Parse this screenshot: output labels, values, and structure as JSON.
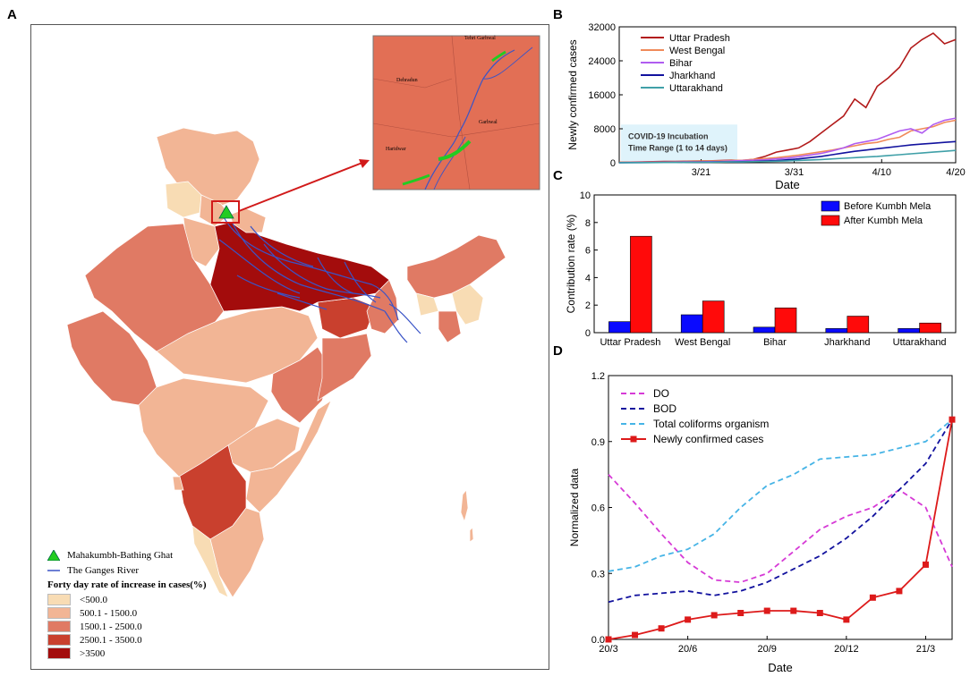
{
  "panels": {
    "a": "A",
    "b": "B",
    "c": "C",
    "d": "D"
  },
  "colors": {
    "class1": "#f8dcb4",
    "class2": "#f2b595",
    "class3": "#e07a64",
    "class4": "#c9402e",
    "class5": "#a30c0c",
    "river": "#3a54c7",
    "ghat": "#22cc22",
    "inset_bg": "#e26f55",
    "arrow": "#d11a1a"
  },
  "map": {
    "inset_places": [
      "Tehri Garhwal",
      "Dehradun",
      "Garhwal",
      "Haridwar"
    ],
    "legend": {
      "ghat_label": "Mahakumbh-Bathing Ghat",
      "river_label": "The Ganges River",
      "title": "Forty day rate of increase in cases(%)",
      "classes": [
        "<500.0",
        "500.1 - 1500.0",
        "1500.1 - 2500.0",
        "2500.1 - 3500.0",
        ">3500"
      ]
    }
  },
  "chart_data": [
    {
      "id": "B",
      "type": "line",
      "xlabel": "Date",
      "ylabel": "Newly confirmed cases",
      "x_ticks": [
        "3/21",
        "3/31",
        "4/10",
        "4/20"
      ],
      "ylim": [
        0,
        32000
      ],
      "y_ticks": [
        "0",
        "8000",
        "16000",
        "24000",
        "32000"
      ],
      "annotation": [
        "COVID-19 Incubation",
        "Time Range (1 to 14 days)"
      ],
      "series": [
        {
          "name": "Uttar Pradesh",
          "color": "#b21a1a",
          "values": [
            100,
            150,
            200,
            250,
            300,
            320,
            350,
            400,
            450,
            500,
            600,
            500,
            800,
            1500,
            2500,
            3000,
            3500,
            5000,
            7000,
            9000,
            11000,
            15000,
            13000,
            18000,
            20000,
            22500,
            27000,
            29000,
            30500,
            28000,
            29000
          ]
        },
        {
          "name": "West Bengal",
          "color": "#f08a5a",
          "values": [
            100,
            120,
            150,
            180,
            200,
            250,
            300,
            350,
            400,
            450,
            500,
            600,
            800,
            1000,
            1200,
            1500,
            1800,
            2200,
            2600,
            3000,
            3500,
            4000,
            4500,
            4800,
            5500,
            6000,
            7500,
            8000,
            8500,
            9500,
            10000
          ]
        },
        {
          "name": "Bihar",
          "color": "#b05cf0",
          "values": [
            50,
            60,
            80,
            100,
            120,
            150,
            180,
            200,
            250,
            300,
            400,
            500,
            600,
            700,
            900,
            1100,
            1400,
            1800,
            2200,
            2800,
            3500,
            4500,
            5000,
            5500,
            6500,
            7500,
            8000,
            7000,
            9000,
            10000,
            10500
          ]
        },
        {
          "name": "Jharkhand",
          "color": "#12129e",
          "values": [
            30,
            40,
            50,
            60,
            70,
            80,
            100,
            120,
            150,
            180,
            200,
            250,
            300,
            400,
            500,
            700,
            900,
            1200,
            1500,
            1900,
            2300,
            2700,
            3000,
            3300,
            3600,
            3900,
            4200,
            4400,
            4600,
            4800,
            5000
          ]
        },
        {
          "name": "Uttarakhand",
          "color": "#40a0a8",
          "values": [
            20,
            30,
            40,
            50,
            60,
            70,
            80,
            100,
            120,
            150,
            180,
            200,
            250,
            300,
            350,
            450,
            550,
            650,
            750,
            900,
            1050,
            1200,
            1350,
            1500,
            1700,
            1900,
            2100,
            2300,
            2500,
            2700,
            2900
          ]
        }
      ]
    },
    {
      "id": "C",
      "type": "bar",
      "xlabel": "",
      "ylabel": "Contribution rate (%)",
      "categories": [
        "Uttar Pradesh",
        "West Bengal",
        "Bihar",
        "Jharkhand",
        "Uttarakhand"
      ],
      "ylim": [
        0,
        10
      ],
      "y_ticks": [
        "0",
        "2",
        "4",
        "6",
        "8",
        "10"
      ],
      "series": [
        {
          "name": "Before Kumbh Mela",
          "color": "#0a0aff",
          "values": [
            0.8,
            1.3,
            0.4,
            0.3,
            0.3
          ]
        },
        {
          "name": "After Kumbh Mela",
          "color": "#ff0a0a",
          "values": [
            7.0,
            2.3,
            1.8,
            1.2,
            0.7
          ]
        }
      ]
    },
    {
      "id": "D",
      "type": "line",
      "xlabel": "Date",
      "ylabel": "Normalized data",
      "x_ticks": [
        "20/3",
        "20/6",
        "20/9",
        "20/12",
        "21/3"
      ],
      "ylim": [
        0,
        1.2
      ],
      "y_ticks": [
        "0.0",
        "0.3",
        "0.6",
        "0.9",
        "1.2"
      ],
      "series": [
        {
          "name": "DO",
          "color": "#d63ad6",
          "style": "dash",
          "values": [
            0.75,
            0.62,
            0.48,
            0.35,
            0.27,
            0.26,
            0.3,
            0.4,
            0.5,
            0.56,
            0.6,
            0.68,
            0.6,
            0.33
          ]
        },
        {
          "name": "BOD",
          "color": "#12129e",
          "style": "dash",
          "values": [
            0.17,
            0.2,
            0.21,
            0.22,
            0.2,
            0.22,
            0.26,
            0.32,
            0.38,
            0.46,
            0.56,
            0.68,
            0.8,
            1.0
          ]
        },
        {
          "name": "Total coliforms organism",
          "color": "#46b4e6",
          "style": "dash",
          "values": [
            0.31,
            0.33,
            0.38,
            0.41,
            0.48,
            0.6,
            0.7,
            0.75,
            0.82,
            0.83,
            0.84,
            0.87,
            0.9,
            1.0
          ]
        },
        {
          "name": "Newly confirmed cases",
          "color": "#dd1a1a",
          "style": "solid-square",
          "values": [
            0.0,
            0.02,
            0.05,
            0.09,
            0.11,
            0.12,
            0.13,
            0.13,
            0.12,
            0.09,
            0.19,
            0.22,
            0.34,
            1.0
          ]
        }
      ]
    }
  ]
}
